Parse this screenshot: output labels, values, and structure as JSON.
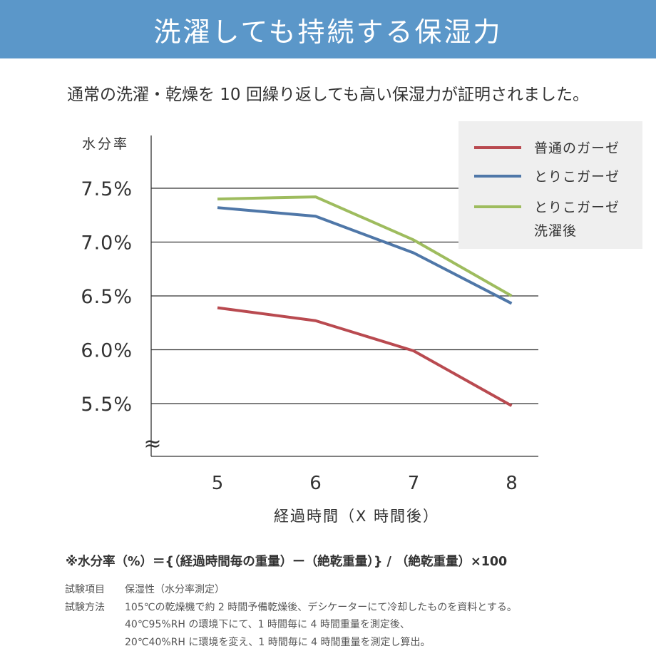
{
  "header": {
    "title": "洗濯しても持続する保湿力"
  },
  "subtitle": "通常の洗濯・乾燥を 10 回繰り返しても高い保湿力が証明されました。",
  "chart_data": {
    "type": "line",
    "ylabel": "水分率",
    "xlabel": "経過時間（X 時間後）",
    "x": [
      5,
      6,
      7,
      8
    ],
    "x_tick_labels": [
      "5",
      "6",
      "7",
      "8"
    ],
    "y_tick_labels": [
      "7.5%",
      "7.0%",
      "6.5%",
      "6.0%",
      "5.5%"
    ],
    "y_ticks": [
      7.5,
      7.0,
      6.5,
      6.0,
      5.5
    ],
    "ylim": [
      5.1,
      8.0
    ],
    "axis_break_symbol": "≈",
    "grid": "horizontal",
    "legend_position": "top-right",
    "series": [
      {
        "name": "普通のガーゼ",
        "color": "#b94a50",
        "values": [
          6.39,
          6.27,
          5.99,
          5.48
        ]
      },
      {
        "name": "とりこガーゼ",
        "color": "#4f77a8",
        "values": [
          7.32,
          7.24,
          6.9,
          6.43
        ]
      },
      {
        "name": "とりこガーゼ 洗濯後",
        "name_lines": [
          "とりこガーゼ",
          "洗濯後"
        ],
        "color": "#9ebc5e",
        "values": [
          7.4,
          7.42,
          7.02,
          6.5
        ]
      }
    ]
  },
  "formula": "※水分率（%）＝{（経過時間毎の重量）ー（絶乾重量）} / （絶乾重量）×100",
  "notes": {
    "item_label": "試験項目",
    "item_value": "保湿性（水分率測定）",
    "method_label": "試験方法",
    "method_lines": [
      "105℃の乾燥機で約 2 時間予備乾燥後、デシケーターにて冷却したものを資料とする。",
      "40℃95%RH の環境下にて、1 時間毎に 4 時間重量を測定後、",
      "20℃40%RH に環境を変え、1 時間毎に 4 時間重量を測定し算出。"
    ]
  }
}
